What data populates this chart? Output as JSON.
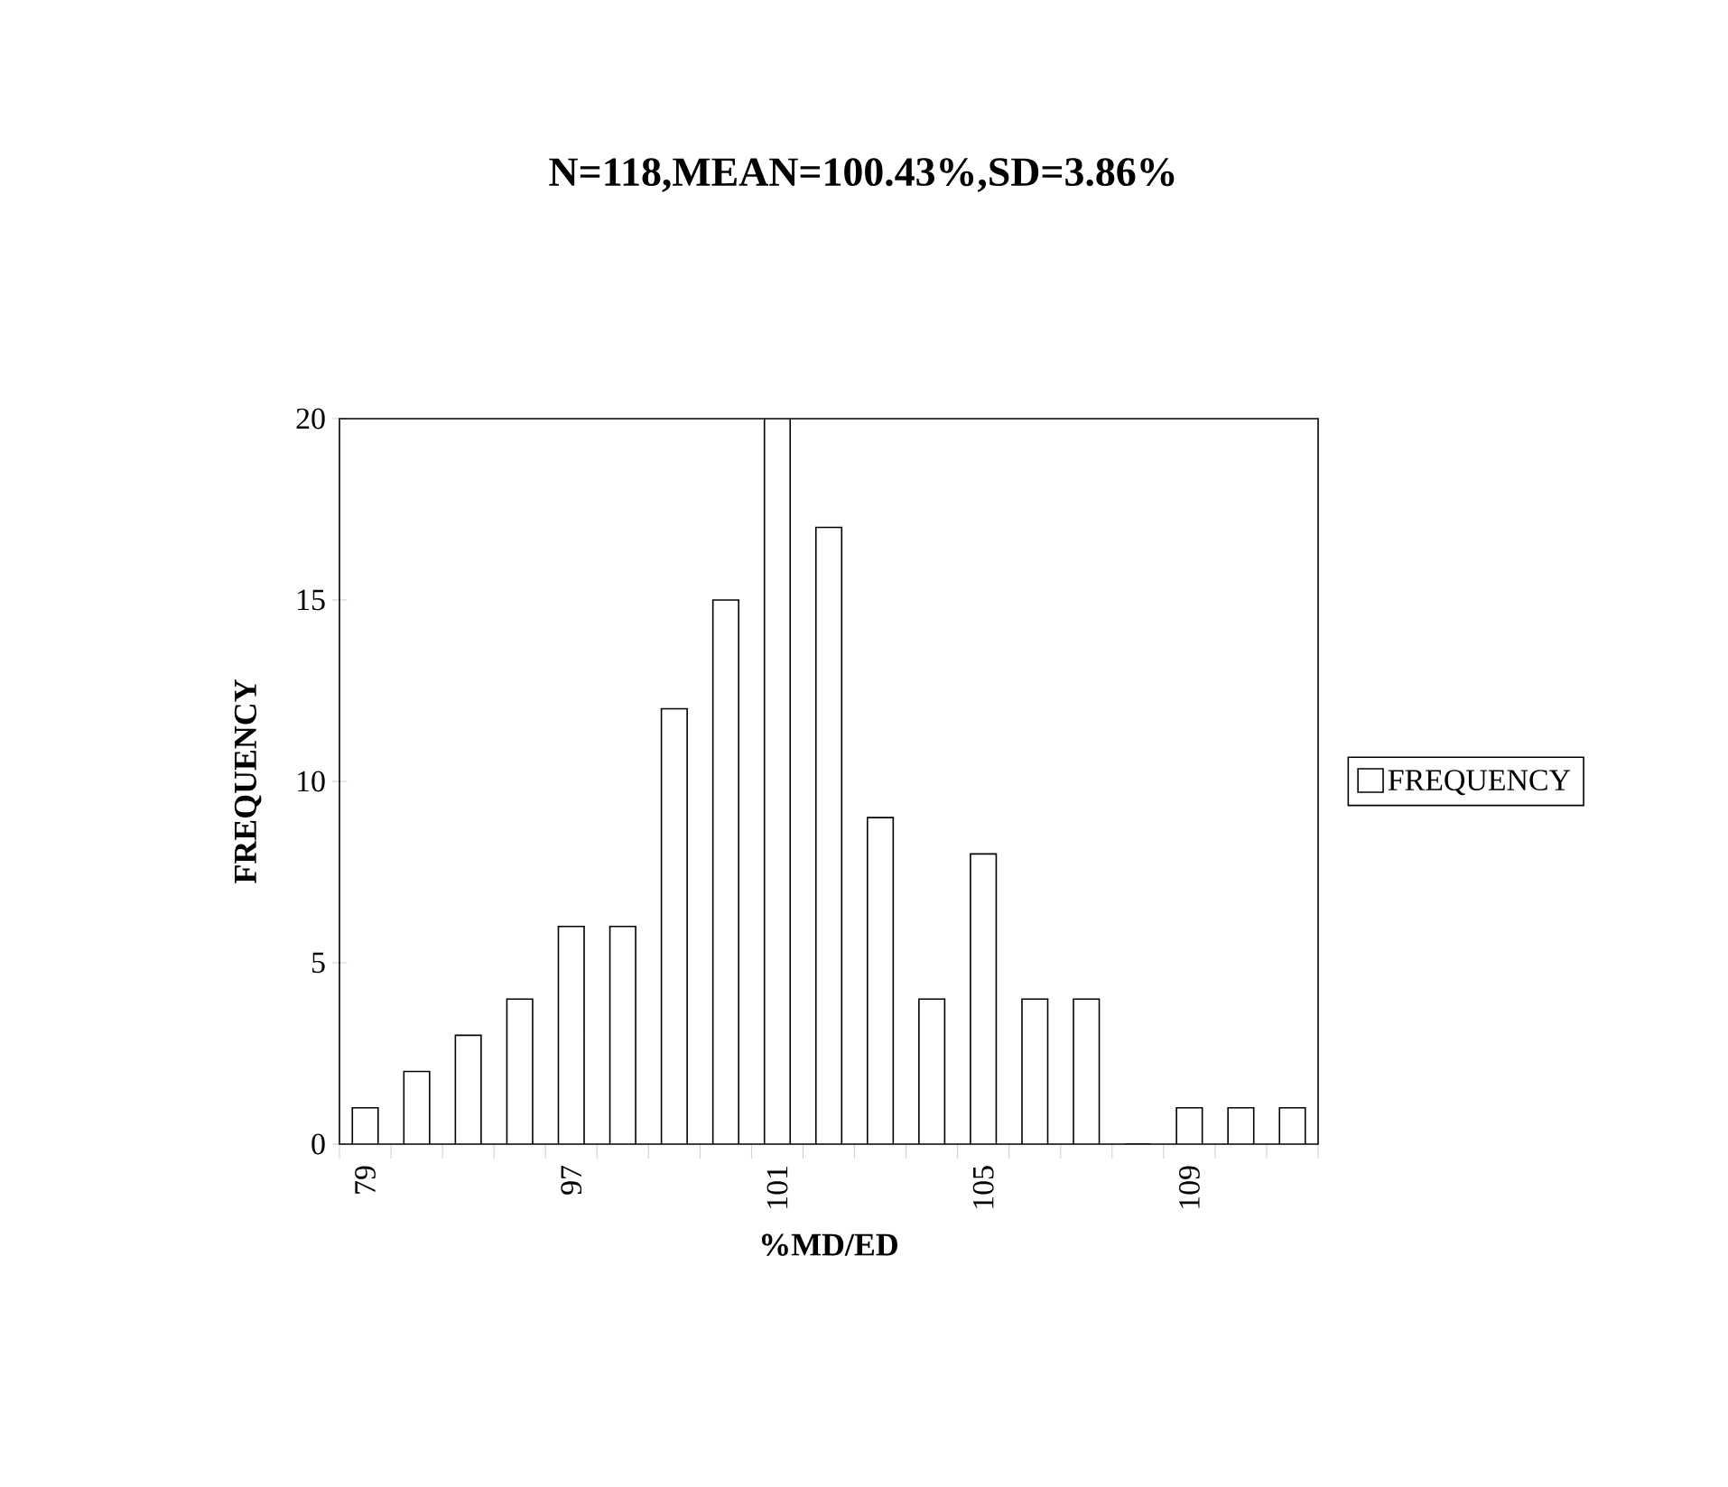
{
  "chart_data": {
    "type": "bar",
    "title": "N=118,MEAN=100.43%,SD=3.86%",
    "xlabel": "%MD/ED",
    "ylabel": "FREQUENCY",
    "categories": [
      "79",
      null,
      null,
      null,
      "97",
      null,
      null,
      null,
      "101",
      null,
      null,
      null,
      "105",
      null,
      null,
      null,
      "109",
      null,
      null
    ],
    "series": [
      {
        "name": "FREQUENCY",
        "color": "#ffffff",
        "values": [
          1,
          2,
          3,
          4,
          6,
          6,
          12,
          15,
          20,
          17,
          9,
          4,
          8,
          4,
          4,
          0,
          1,
          1,
          1
        ]
      }
    ],
    "ylim": [
      0,
      20
    ],
    "yticks": [
      0,
      5,
      10,
      15,
      20
    ],
    "legend": "right",
    "grid": false
  }
}
